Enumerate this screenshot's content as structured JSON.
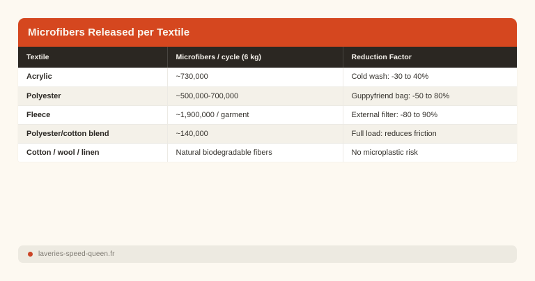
{
  "card": {
    "title": "Microfibers Released per Textile"
  },
  "table": {
    "columns": [
      "Textile",
      "Microfibers / cycle (6 kg)",
      "Reduction Factor"
    ],
    "rows": [
      [
        "Acrylic",
        "~730,000",
        "Cold wash: -30 to 40%"
      ],
      [
        "Polyester",
        "~500,000-700,000",
        "Guppyfriend bag: -50 to 80%"
      ],
      [
        "Fleece",
        "~1,900,000 / garment",
        "External filter: -80 to 90%"
      ],
      [
        "Polyester/cotton blend",
        "~140,000",
        "Full load: reduces friction"
      ],
      [
        "Cotton / wool / linen",
        "Natural biodegradable fibers",
        "No microplastic risk"
      ]
    ]
  },
  "footer": {
    "source": "laveries-speed-queen.fr"
  },
  "colors": {
    "accent_orange": "#d5471f",
    "header_dark": "#2b2722",
    "row_stripe": "#f4f1e9",
    "page_background": "#fdf9f1",
    "source_bar": "#edeae1",
    "source_dot": "#cb4426"
  },
  "chart_data": {
    "type": "table",
    "title": "Microfibers Released per Textile",
    "columns": [
      "Textile",
      "Microfibers / cycle (6 kg)",
      "Reduction Factor"
    ],
    "rows": [
      {
        "textile": "Acrylic",
        "microfibers_per_cycle": "~730,000",
        "reduction_factor": "Cold wash: -30 to 40%"
      },
      {
        "textile": "Polyester",
        "microfibers_per_cycle": "~500,000-700,000",
        "reduction_factor": "Guppyfriend bag: -50 to 80%"
      },
      {
        "textile": "Fleece",
        "microfibers_per_cycle": "~1,900,000 / garment",
        "reduction_factor": "External filter: -80 to 90%"
      },
      {
        "textile": "Polyester/cotton blend",
        "microfibers_per_cycle": "~140,000",
        "reduction_factor": "Full load: reduces friction"
      },
      {
        "textile": "Cotton / wool / linen",
        "microfibers_per_cycle": "Natural biodegradable fibers",
        "reduction_factor": "No microplastic risk"
      }
    ],
    "source": "laveries-speed-queen.fr"
  }
}
